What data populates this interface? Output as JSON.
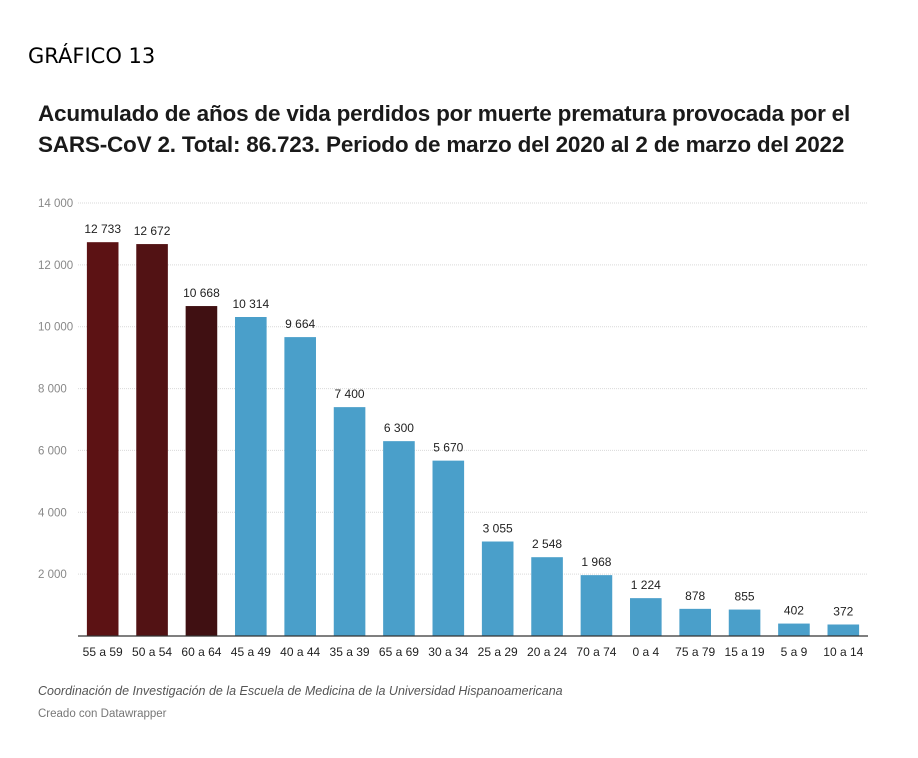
{
  "figure_label": "GRÁFICO 13",
  "chart_data": {
    "type": "bar",
    "title": "Acumulado de años de vida perdidos por muerte prematura provocada por el SARS-CoV 2. Total: 86.723. Periodo de marzo del 2020 al 2 de marzo del 2022",
    "categories": [
      "55 a 59",
      "50 a 54",
      "60 a 64",
      "45 a 49",
      "40 a 44",
      "35 a 39",
      "65 a 69",
      "30 a 34",
      "25 a 29",
      "20 a 24",
      "70 a 74",
      "0 a 4",
      "75 a 79",
      "15 a 19",
      "5 a 9",
      "10 a 14"
    ],
    "values": [
      12733,
      12672,
      10668,
      10314,
      9664,
      7400,
      6300,
      5670,
      3055,
      2548,
      1968,
      1224,
      878,
      855,
      402,
      372
    ],
    "value_labels": [
      "12 733",
      "12 672",
      "10 668",
      "10 314",
      "9 664",
      "7 400",
      "6 300",
      "5 670",
      "3 055",
      "2 548",
      "1 968",
      "1 224",
      "878",
      "855",
      "402",
      "372"
    ],
    "bar_colors": [
      "#5c1214",
      "#521214",
      "#401012",
      "#4a9fca",
      "#4a9fca",
      "#4a9fca",
      "#4a9fca",
      "#4a9fca",
      "#4a9fca",
      "#4a9fca",
      "#4a9fca",
      "#4a9fca",
      "#4a9fca",
      "#4a9fca",
      "#4a9fca",
      "#4a9fca"
    ],
    "yticks": [
      2000,
      4000,
      6000,
      8000,
      10000,
      12000,
      14000
    ],
    "ytick_labels": [
      "2 000",
      "4 000",
      "6 000",
      "8 000",
      "10 000",
      "12 000",
      "14 000"
    ],
    "ylim": [
      0,
      14000
    ],
    "grid": true,
    "xlabel": "",
    "ylabel": ""
  },
  "source": "Coordinación de Investigación de la Escuela de Medicina de la Universidad Hispanoamericana",
  "credit": "Creado con Datawrapper"
}
